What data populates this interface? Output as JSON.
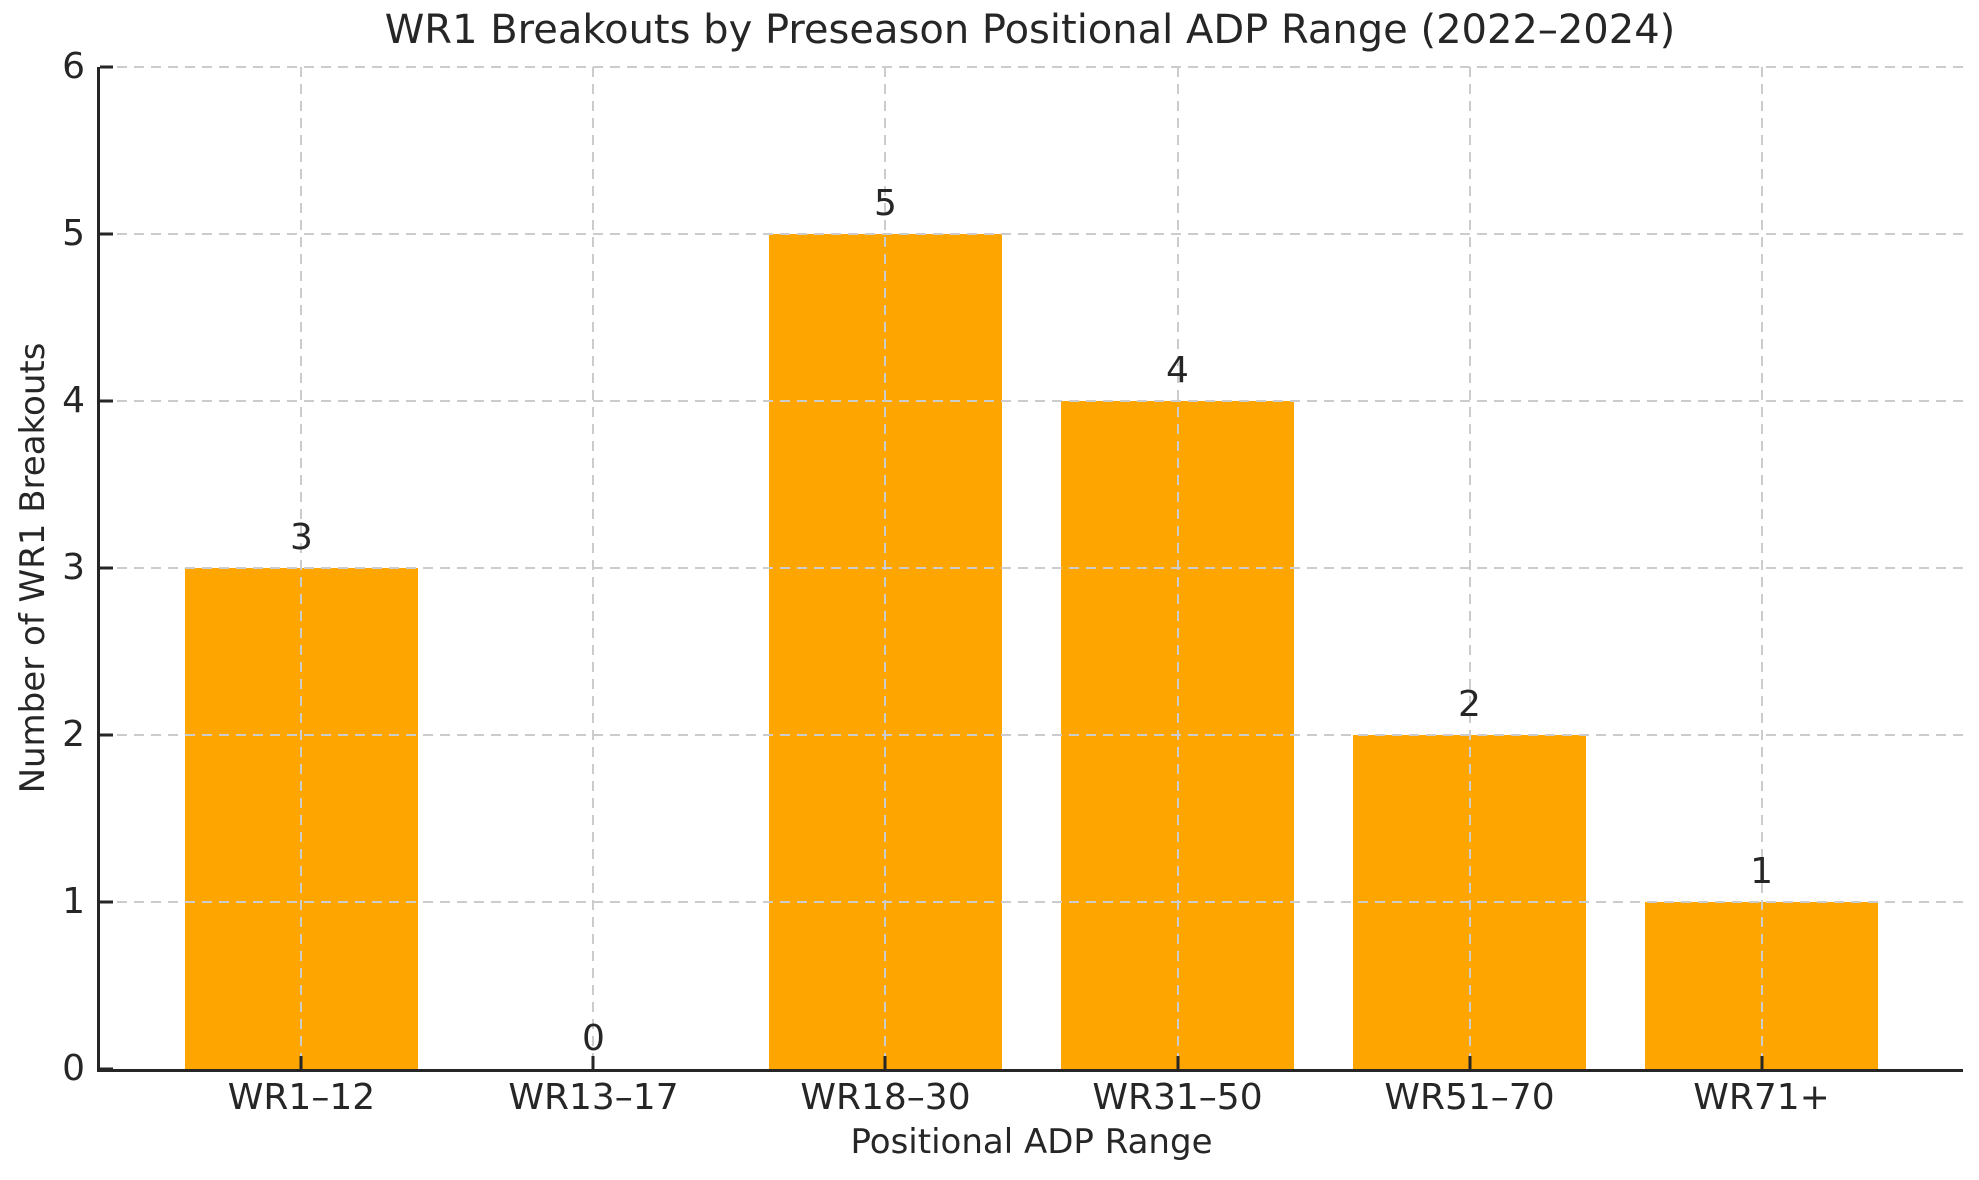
{
  "chart_data": {
    "type": "bar",
    "title": "WR1 Breakouts by Preseason Positional ADP Range (2022–2024)",
    "xlabel": "Positional ADP Range",
    "ylabel": "Number of WR1 Breakouts",
    "categories": [
      "WR1–12",
      "WR13–17",
      "WR18–30",
      "WR31–50",
      "WR51–70",
      "WR71+"
    ],
    "values": [
      3,
      0,
      5,
      4,
      2,
      1
    ],
    "bar_value_labels": [
      "3",
      "0",
      "5",
      "4",
      "2",
      "1"
    ],
    "yticks": [
      0,
      1,
      2,
      3,
      4,
      5,
      6
    ],
    "ylim": [
      0,
      6
    ],
    "xlim": [
      -0.69,
      5.69
    ],
    "bar_width": 0.8,
    "grid": "dashed gridlines on both axes, drawn above bars",
    "legend": "none",
    "spines": "left and bottom only, ticks pointing inward",
    "colors": {
      "bar": "#FFA500",
      "grid": "#cccccc",
      "text": "#262626",
      "spine": "#262626",
      "background": "#ffffff"
    }
  }
}
